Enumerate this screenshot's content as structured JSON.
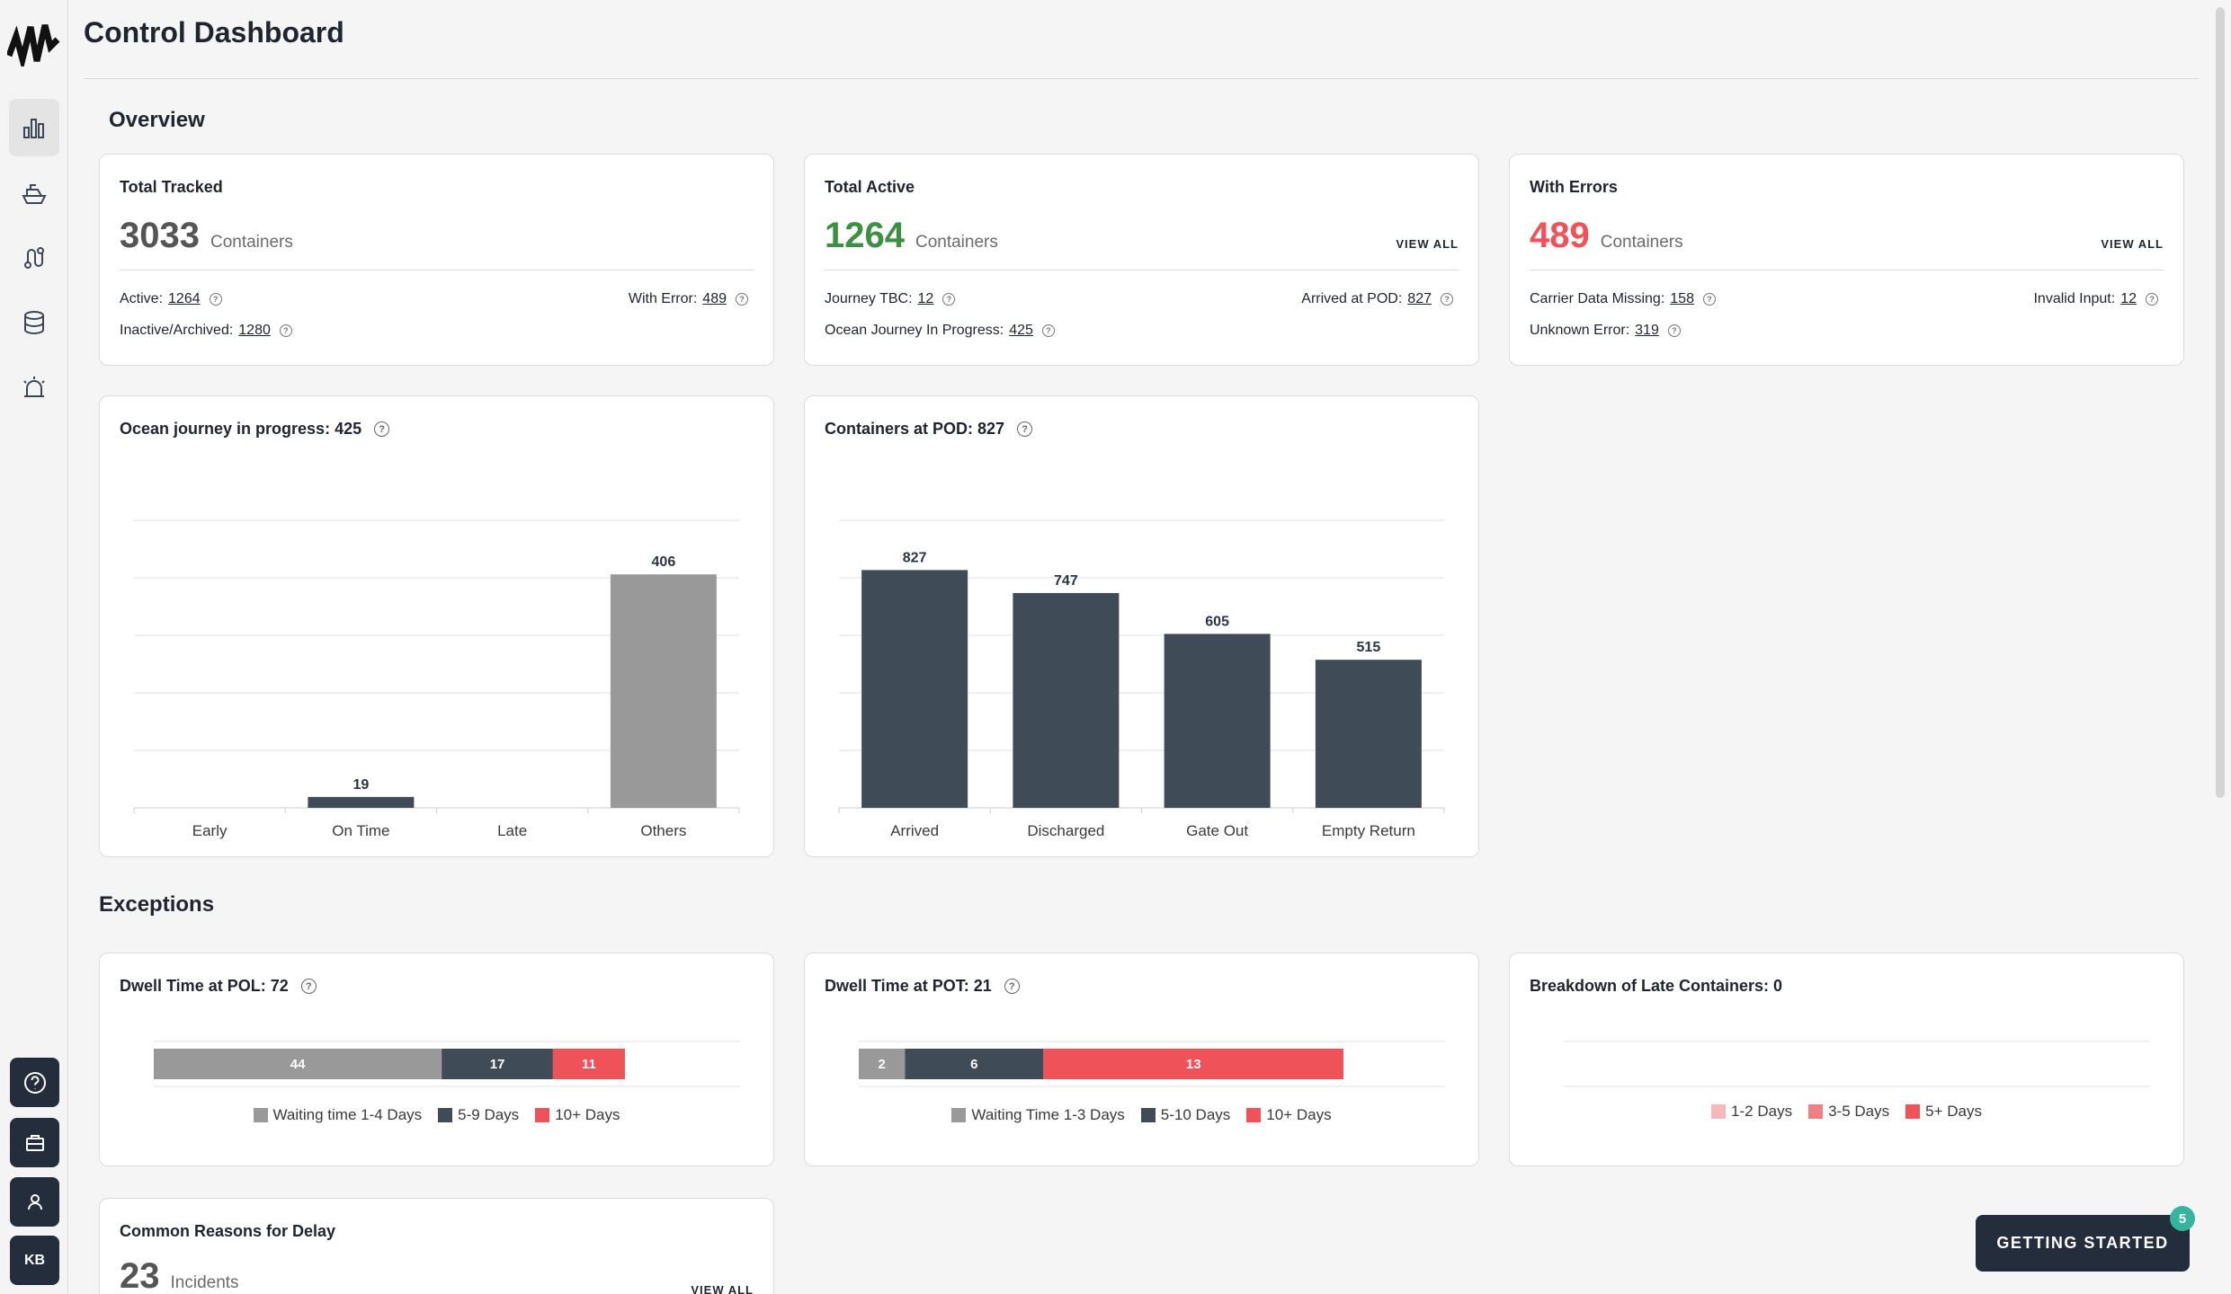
{
  "header": {
    "title": "Control Dashboard"
  },
  "nav": {
    "icons": [
      "dashboard-icon",
      "ship-icon",
      "route-icon",
      "database-icon",
      "alarm-icon"
    ],
    "bottom": [
      "help-icon",
      "briefcase-icon",
      "user-icon"
    ],
    "avatar_initials": "KB"
  },
  "overview": {
    "title": "Overview",
    "cards": [
      {
        "title": "Total Tracked",
        "count": "3033",
        "unit": "Containers",
        "view_all": "",
        "stats": [
          {
            "label": "Active:",
            "value": "1264"
          },
          {
            "label": "With Error:",
            "value": "489"
          },
          {
            "label": "Inactive/Archived:",
            "value": "1280"
          }
        ]
      },
      {
        "title": "Total Active",
        "count": "1264",
        "unit": "Containers",
        "view_all": "VIEW ALL",
        "stats": [
          {
            "label": "Journey TBC:",
            "value": "12"
          },
          {
            "label": "Arrived at POD:",
            "value": "827"
          },
          {
            "label": "Ocean Journey In Progress:",
            "value": "425"
          }
        ]
      },
      {
        "title": "With Errors",
        "count": "489",
        "unit": "Containers",
        "view_all": "VIEW ALL",
        "stats": [
          {
            "label": "Carrier Data Missing:",
            "value": "158"
          },
          {
            "label": "Invalid Input:",
            "value": "12"
          },
          {
            "label": "Unknown Error:",
            "value": "319"
          }
        ]
      }
    ]
  },
  "charts": {
    "ocean": {
      "title": "Ocean journey in progress: 425"
    },
    "pod": {
      "title": "Containers at POD: 827"
    }
  },
  "exceptions": {
    "title": "Exceptions",
    "pol_title": "Dwell Time at POL: 72",
    "pot_title": "Dwell Time at POT: 21",
    "late_title": "Breakdown of Late Containers: 0",
    "delay": {
      "title": "Common Reasons for Delay",
      "count": "23",
      "unit": "Incidents",
      "view_all": "VIEW ALL"
    }
  },
  "getting_started": {
    "label": "GETTING STARTED",
    "badge": "5"
  },
  "colors": {
    "green": "#3f8f43",
    "red": "#f0525a",
    "dark": "#404b58",
    "gray": "#999999"
  },
  "chart_data": [
    {
      "type": "bar",
      "categories": [
        "Early",
        "On Time",
        "Late",
        "Others"
      ],
      "values": [
        0,
        19,
        0,
        406
      ],
      "ylim": [
        0,
        500
      ],
      "grid": true
    },
    {
      "type": "bar",
      "categories": [
        "Arrived",
        "Discharged",
        "Gate Out",
        "Empty Return"
      ],
      "values": [
        827,
        747,
        605,
        515
      ],
      "ylim": [
        0,
        1000
      ],
      "grid": true
    },
    {
      "type": "bar",
      "stacked": true,
      "orientation": "horizontal",
      "series": [
        {
          "name": "Waiting time 1-4 Days",
          "values": [
            44
          ]
        },
        {
          "name": "5-9 Days",
          "values": [
            17
          ]
        },
        {
          "name": "10+ Days",
          "values": [
            11
          ]
        }
      ]
    },
    {
      "type": "bar",
      "stacked": true,
      "orientation": "horizontal",
      "series": [
        {
          "name": "Waiting Time 1-3 Days",
          "values": [
            2
          ]
        },
        {
          "name": "5-10 Days",
          "values": [
            6
          ]
        },
        {
          "name": "10+ Days",
          "values": [
            13
          ]
        }
      ]
    },
    {
      "type": "bar",
      "stacked": true,
      "orientation": "horizontal",
      "series": [
        {
          "name": "1-2 Days",
          "values": [
            0
          ]
        },
        {
          "name": "3-5 Days",
          "values": [
            0
          ]
        },
        {
          "name": "5+ Days",
          "values": [
            0
          ]
        }
      ]
    }
  ]
}
